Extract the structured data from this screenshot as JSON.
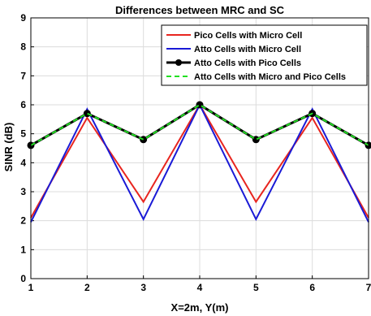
{
  "chart_data": {
    "type": "line",
    "title": "Differences between MRC and SC",
    "xlabel": "X=2m, Y(m)",
    "ylabel": "SINR (dB)",
    "xlim": [
      1,
      7
    ],
    "ylim": [
      0,
      9
    ],
    "grid": true,
    "legend_position": "top-right",
    "x": [
      1,
      2,
      3,
      4,
      5,
      6,
      7
    ],
    "x_ticks": [
      "1",
      "2",
      "3",
      "4",
      "5",
      "6",
      "7"
    ],
    "y_ticks": [
      "0",
      "1",
      "2",
      "3",
      "4",
      "5",
      "6",
      "7",
      "8",
      "9"
    ],
    "series": [
      {
        "name": "Pico Cells with Micro Cell",
        "color": "#e8251f",
        "style": "solid",
        "marker": "none",
        "values": [
          2.1,
          5.55,
          2.65,
          6.0,
          2.65,
          5.55,
          2.1
        ]
      },
      {
        "name": "Atto Cells with Micro Cell",
        "color": "#1a1ad6",
        "style": "solid",
        "marker": "none",
        "values": [
          1.95,
          5.85,
          2.05,
          6.0,
          2.05,
          5.85,
          1.95
        ]
      },
      {
        "name": "Atto Cells with Pico Cells",
        "color": "#000000",
        "style": "solid",
        "marker": "circle",
        "values": [
          4.6,
          5.7,
          4.8,
          6.0,
          4.8,
          5.7,
          4.6
        ]
      },
      {
        "name": "Atto Cells with Micro and Pico Cells",
        "color": "#22e022",
        "style": "dashed",
        "marker": "none",
        "values": [
          4.6,
          5.7,
          4.8,
          6.0,
          4.8,
          5.7,
          4.6
        ]
      }
    ]
  }
}
